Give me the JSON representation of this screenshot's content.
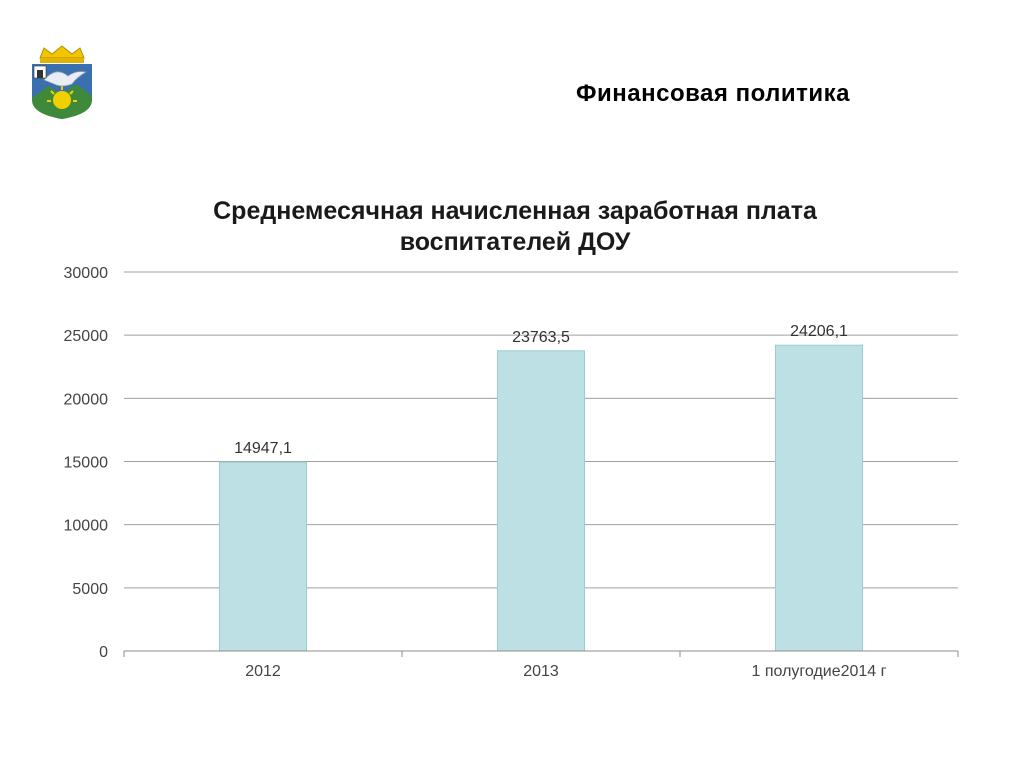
{
  "header": {
    "title": "Финансовая политика"
  },
  "emblem": {
    "icon": "coat-of-arms-icon",
    "colors": {
      "shield": "#3a6fb0",
      "crown": "#f2c500",
      "sun": "#f2d000",
      "mountain": "#3f8a3a",
      "bird": "#e9eef5"
    }
  },
  "chart_data": {
    "type": "bar",
    "title_lines": [
      "Среднемесячная начисленная заработная плата",
      "воспитателей ДОУ"
    ],
    "categories": [
      "2012",
      "2013",
      "1 полугодие2014 г"
    ],
    "values": [
      14947.1,
      23763.5,
      24206.1
    ],
    "data_labels": [
      "14947,1",
      "23763,5",
      "24206,1"
    ],
    "ylim": [
      0,
      30000
    ],
    "yticks": [
      0,
      5000,
      10000,
      15000,
      20000,
      25000,
      30000
    ],
    "grid": true,
    "legend": "none",
    "bar_color": "#bce0e3",
    "bar_border_color": "#9ccbd0",
    "grid_color": "#a0a0a0"
  }
}
